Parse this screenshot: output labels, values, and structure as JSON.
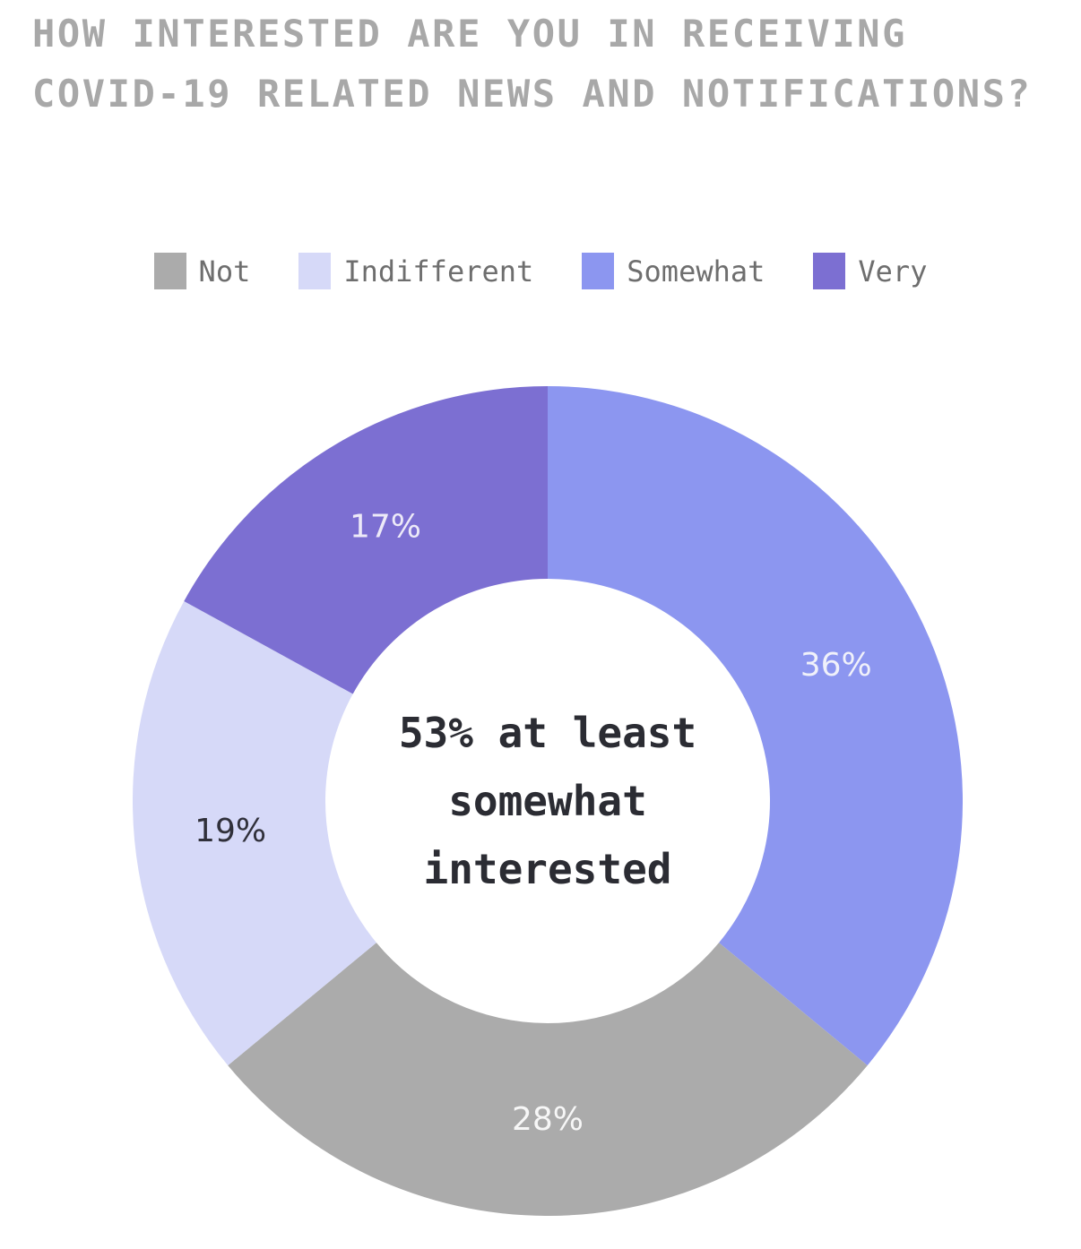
{
  "title": {
    "line1": "HOW INTERESTED ARE YOU IN RECEIVING",
    "line2": "COVID-19 RELATED NEWS AND NOTIFICATIONS?",
    "color": "#a8a8a8"
  },
  "chart_data": {
    "type": "pie",
    "variant": "donut",
    "title": "HOW INTERESTED ARE YOU IN RECEIVING COVID-19 RELATED NEWS AND NOTIFICATIONS?",
    "center_label": "53% at least somewhat interested",
    "cutout_ratio": 0.536,
    "start_angle_deg": 0,
    "direction": "clockwise",
    "legend_position": "top",
    "legend_order": [
      "Not",
      "Indifferent",
      "Somewhat",
      "Very"
    ],
    "slices_clockwise_from_top": [
      {
        "label": "Somewhat",
        "value": 36,
        "value_label": "36%",
        "color": "#8c96f0",
        "label_color": "#f0f1fa"
      },
      {
        "label": "Not",
        "value": 28,
        "value_label": "28%",
        "color": "#ababab",
        "label_color": "#f7f7f7"
      },
      {
        "label": "Indifferent",
        "value": 19,
        "value_label": "19%",
        "color": "#d6d9f8",
        "label_color": "#30303a"
      },
      {
        "label": "Very",
        "value": 17,
        "value_label": "17%",
        "color": "#7c6fd2",
        "label_color": "#edeaf8"
      }
    ]
  }
}
